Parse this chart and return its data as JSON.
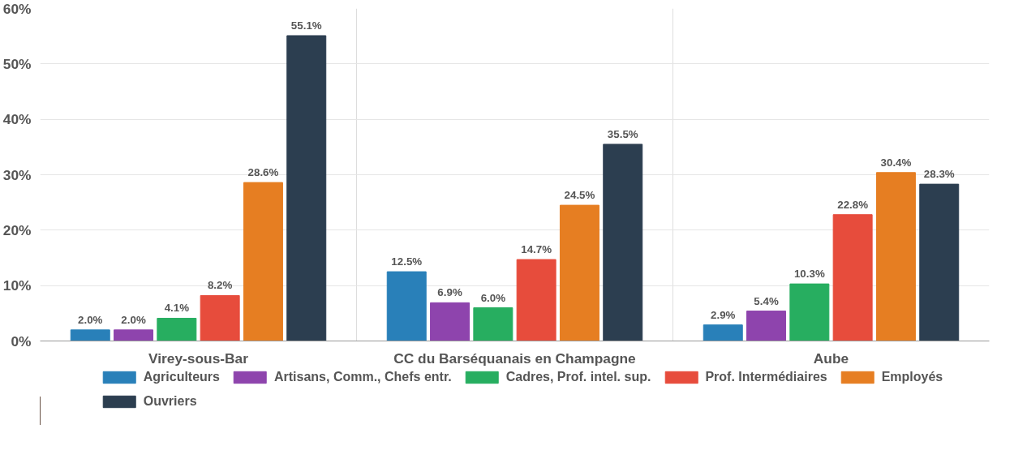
{
  "chart_data": {
    "type": "bar",
    "categories": [
      "Virey-sous-Bar",
      "CC du Barséquanais en Champagne",
      "Aube"
    ],
    "ylim": [
      0,
      60
    ],
    "yticks": [
      {
        "value": 0,
        "label": "0%"
      },
      {
        "value": 10,
        "label": "10%"
      },
      {
        "value": 20,
        "label": "20%"
      },
      {
        "value": 30,
        "label": "30%"
      },
      {
        "value": 40,
        "label": "40%"
      },
      {
        "value": 50,
        "label": "50%"
      },
      {
        "value": 60,
        "label": "60%"
      }
    ],
    "grid": true,
    "legend": "bottom",
    "series": [
      {
        "name": "Agriculteurs",
        "color": "#2980b9",
        "values": [
          2.0,
          12.5,
          2.9
        ],
        "value_labels": [
          "2.0%",
          "12.5%",
          "2.9%"
        ]
      },
      {
        "name": "Artisans, Comm., Chefs entr.",
        "color": "#8e44ad",
        "values": [
          2.0,
          6.9,
          5.4
        ],
        "value_labels": [
          "2.0%",
          "6.9%",
          "5.4%"
        ]
      },
      {
        "name": "Cadres, Prof. intel. sup.",
        "color": "#27ae60",
        "values": [
          4.1,
          6.0,
          10.3
        ],
        "value_labels": [
          "4.1%",
          "6.0%",
          "10.3%"
        ]
      },
      {
        "name": "Prof. Intermédiaires",
        "color": "#e74c3c",
        "values": [
          8.2,
          14.7,
          22.8
        ],
        "value_labels": [
          "8.2%",
          "14.7%",
          "22.8%"
        ]
      },
      {
        "name": "Employés",
        "color": "#e67e22",
        "values": [
          28.6,
          24.5,
          30.4
        ],
        "value_labels": [
          "28.6%",
          "24.5%",
          "30.4%"
        ]
      },
      {
        "name": "Ouvriers",
        "color": "#2c3e50",
        "values": [
          55.1,
          35.5,
          28.3
        ],
        "value_labels": [
          "55.1%",
          "35.5%",
          "28.3%"
        ]
      }
    ]
  }
}
